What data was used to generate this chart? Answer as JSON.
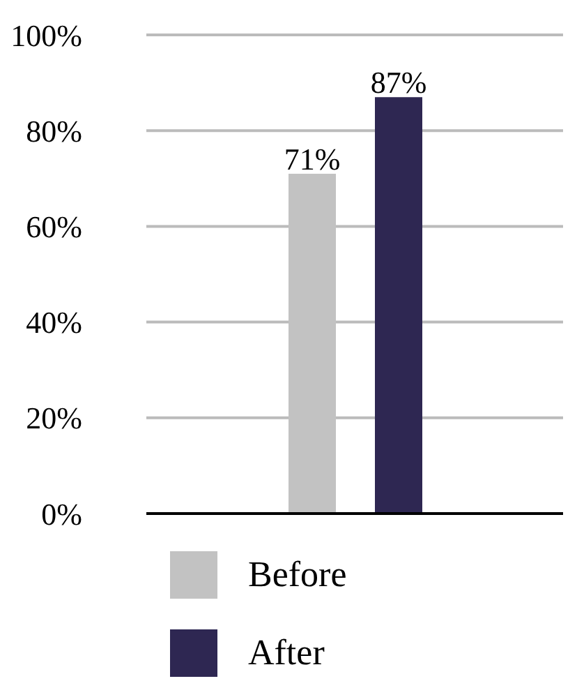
{
  "chart_data": {
    "type": "bar",
    "categories": [
      null
    ],
    "series": [
      {
        "name": "Before",
        "color": "#c2c2c2",
        "values": [
          71
        ],
        "value_labels": [
          "71%"
        ]
      },
      {
        "name": "After",
        "color": "#2e2752",
        "values": [
          87
        ],
        "value_labels": [
          "87%"
        ]
      }
    ],
    "ylim": [
      0,
      100
    ],
    "yticks": [
      {
        "value": 0,
        "label": "0%"
      },
      {
        "value": 20,
        "label": "20%"
      },
      {
        "value": 40,
        "label": "40%"
      },
      {
        "value": 60,
        "label": "60%"
      },
      {
        "value": 80,
        "label": "80%"
      },
      {
        "value": 100,
        "label": "100%"
      }
    ],
    "grid": "y",
    "legend": "bottom"
  }
}
